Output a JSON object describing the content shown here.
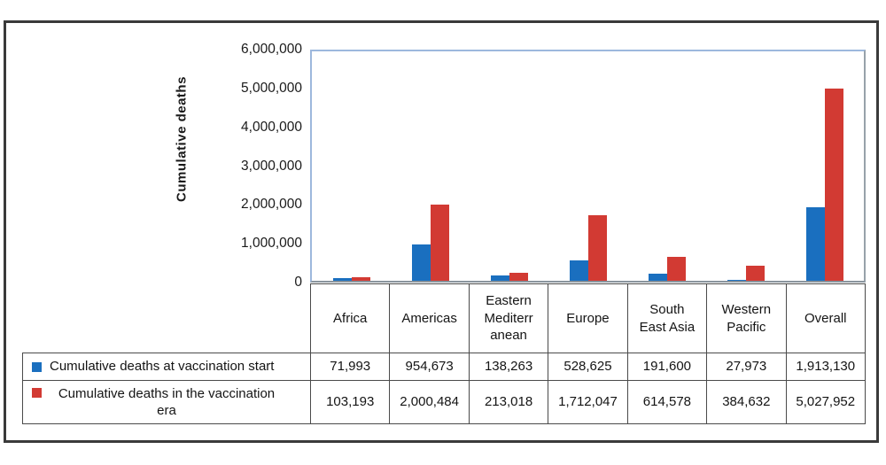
{
  "chart_data": {
    "type": "bar",
    "title": "",
    "xlabel": "",
    "ylabel": "Cumulative deaths",
    "ylim": [
      0,
      6000000
    ],
    "ytick_interval": 1000000,
    "yticks": [
      "6,000,000",
      "5,000,000",
      "4,000,000",
      "3,000,000",
      "2,000,000",
      "1,000,000",
      "0"
    ],
    "grid": false,
    "legend_position": "table-left",
    "plot_border_color": "#9db8dd",
    "axis_line_color": "#8a959e",
    "categories": [
      "Africa",
      "Americas",
      "Eastern Mediterranean",
      "Europe",
      "South East Asia",
      "Western Pacific",
      "Overall"
    ],
    "category_label_lines": [
      [
        "Africa"
      ],
      [
        "Americas"
      ],
      [
        "Eastern",
        "Mediterr",
        "anean"
      ],
      [
        "Europe"
      ],
      [
        "South",
        "East Asia"
      ],
      [
        "Western",
        "Pacific"
      ],
      [
        "Overall"
      ]
    ],
    "series": [
      {
        "name": "Cumulative deaths at vaccination start",
        "name_lines": [
          "Cumulative deaths at vaccination start"
        ],
        "color": "#1a6fbf",
        "values": [
          71993,
          954673,
          138263,
          528625,
          191600,
          27973,
          1913130
        ],
        "formatted": [
          "71,993",
          "954,673",
          "138,263",
          "528,625",
          "191,600",
          "27,973",
          "1,913,130"
        ]
      },
      {
        "name": "Cumulative deaths in the vaccination era",
        "name_lines": [
          "Cumulative deaths in the vaccination",
          "era"
        ],
        "color": "#d23a33",
        "values": [
          103193,
          2000484,
          213018,
          1712047,
          614578,
          384632,
          5027952
        ],
        "formatted": [
          "103,193",
          "2,000,484",
          "213,018",
          "1,712,047",
          "614,578",
          "384,632",
          "5,027,952"
        ]
      }
    ]
  }
}
